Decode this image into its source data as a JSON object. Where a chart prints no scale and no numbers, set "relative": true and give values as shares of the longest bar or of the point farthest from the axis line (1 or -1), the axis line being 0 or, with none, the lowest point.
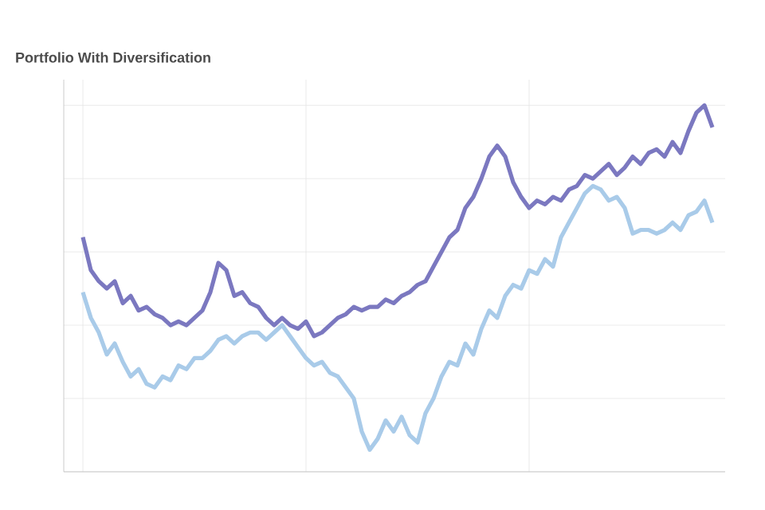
{
  "chart_data": {
    "type": "line",
    "title": "Portfolio With Diversification",
    "relative": true,
    "grid": true,
    "categories": [
      null,
      null,
      null,
      null,
      null,
      null,
      null,
      null,
      null,
      null,
      null,
      null,
      null,
      null,
      null,
      null,
      null,
      null,
      null,
      null,
      null,
      null,
      null,
      null,
      null,
      null,
      null,
      null,
      null,
      null,
      null,
      null,
      null,
      null,
      null,
      null,
      null,
      null,
      null,
      null,
      null,
      null,
      null,
      null,
      null,
      null,
      null,
      null,
      null,
      null,
      null,
      null,
      null,
      null,
      null,
      null,
      null,
      null,
      null,
      null,
      null,
      null,
      null,
      null,
      null,
      null,
      null,
      null,
      null,
      null,
      null,
      null,
      null,
      null,
      null,
      null,
      null,
      null,
      null,
      null
    ],
    "series": [
      {
        "color": "#7b78c0",
        "values": [
          0.64,
          0.55,
          0.52,
          0.5,
          0.52,
          0.46,
          0.48,
          0.44,
          0.45,
          0.43,
          0.42,
          0.4,
          0.41,
          0.4,
          0.42,
          0.44,
          0.49,
          0.57,
          0.55,
          0.48,
          0.49,
          0.46,
          0.45,
          0.42,
          0.4,
          0.42,
          0.4,
          0.39,
          0.41,
          0.37,
          0.38,
          0.4,
          0.42,
          0.43,
          0.45,
          0.44,
          0.45,
          0.45,
          0.47,
          0.46,
          0.48,
          0.49,
          0.51,
          0.52,
          0.56,
          0.6,
          0.64,
          0.66,
          0.72,
          0.75,
          0.8,
          0.86,
          0.89,
          0.86,
          0.79,
          0.75,
          0.72,
          0.74,
          0.73,
          0.75,
          0.74,
          0.77,
          0.78,
          0.81,
          0.8,
          0.82,
          0.84,
          0.81,
          0.83,
          0.86,
          0.84,
          0.87,
          0.88,
          0.86,
          0.9,
          0.87,
          0.93,
          0.98,
          1.0,
          0.94
        ]
      },
      {
        "color": "#a9cbe9",
        "values": [
          0.49,
          0.42,
          0.38,
          0.32,
          0.35,
          0.3,
          0.26,
          0.28,
          0.24,
          0.23,
          0.26,
          0.25,
          0.29,
          0.28,
          0.31,
          0.31,
          0.33,
          0.36,
          0.37,
          0.35,
          0.37,
          0.38,
          0.38,
          0.36,
          0.38,
          0.4,
          0.37,
          0.34,
          0.31,
          0.29,
          0.3,
          0.27,
          0.26,
          0.23,
          0.2,
          0.11,
          0.06,
          0.09,
          0.14,
          0.11,
          0.15,
          0.1,
          0.08,
          0.16,
          0.2,
          0.26,
          0.3,
          0.29,
          0.35,
          0.32,
          0.39,
          0.44,
          0.42,
          0.48,
          0.51,
          0.5,
          0.55,
          0.54,
          0.58,
          0.56,
          0.64,
          0.68,
          0.72,
          0.76,
          0.78,
          0.77,
          0.74,
          0.75,
          0.72,
          0.65,
          0.66,
          0.66,
          0.65,
          0.66,
          0.68,
          0.66,
          0.7,
          0.71,
          0.74,
          0.68
        ]
      }
    ]
  }
}
